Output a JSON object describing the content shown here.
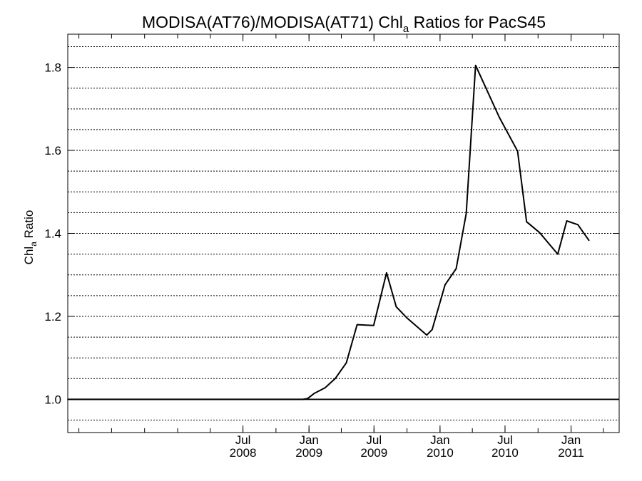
{
  "chart_data": {
    "type": "line",
    "title": {
      "prefix": "MODISA(AT76)/MODISA(AT71)  Chl",
      "subscript": "a",
      "suffix": " Ratios for PacS45"
    },
    "xlabel": "",
    "ylabel": {
      "prefix": "Chl",
      "subscript": "a",
      "suffix": " Ratio"
    },
    "xlim": [
      "2007-03-01",
      "2011-05-15"
    ],
    "ylim": [
      0.92,
      1.88
    ],
    "y_ticks": [
      {
        "value": 1.0,
        "label": "1.0"
      },
      {
        "value": 1.2,
        "label": "1.2"
      },
      {
        "value": 1.4,
        "label": "1.4"
      },
      {
        "value": 1.6,
        "label": "1.6"
      },
      {
        "value": 1.8,
        "label": "1.8"
      }
    ],
    "y_gridlines": [
      0.95,
      1.0,
      1.05,
      1.1,
      1.15,
      1.2,
      1.25,
      1.3,
      1.35,
      1.4,
      1.45,
      1.5,
      1.55,
      1.6,
      1.65,
      1.7,
      1.75,
      1.8,
      1.85
    ],
    "x_ticks": [
      {
        "date": "2008-07-01",
        "month": "Jul",
        "year": "2008"
      },
      {
        "date": "2009-01-01",
        "month": "Jan",
        "year": "2009"
      },
      {
        "date": "2009-07-01",
        "month": "Jul",
        "year": "2009"
      },
      {
        "date": "2010-01-01",
        "month": "Jan",
        "year": "2010"
      },
      {
        "date": "2010-07-01",
        "month": "Jul",
        "year": "2010"
      },
      {
        "date": "2011-01-01",
        "month": "Jan",
        "year": "2011"
      }
    ],
    "grid": true,
    "reference_line": 1.0,
    "series": [
      {
        "color": "#000000",
        "points": [
          {
            "x": "2007-03-01",
            "y": 1.0
          },
          {
            "x": "2008-12-15",
            "y": 1.0
          },
          {
            "x": "2008-12-28",
            "y": 1.002
          },
          {
            "x": "2009-01-15",
            "y": 1.014
          },
          {
            "x": "2009-02-15",
            "y": 1.028
          },
          {
            "x": "2009-03-15",
            "y": 1.05
          },
          {
            "x": "2009-04-15",
            "y": 1.088
          },
          {
            "x": "2009-05-15",
            "y": 1.18
          },
          {
            "x": "2009-06-30",
            "y": 1.178
          },
          {
            "x": "2009-08-05",
            "y": 1.305
          },
          {
            "x": "2009-09-01",
            "y": 1.223
          },
          {
            "x": "2009-10-01",
            "y": 1.196
          },
          {
            "x": "2009-11-25",
            "y": 1.155
          },
          {
            "x": "2009-12-10",
            "y": 1.168
          },
          {
            "x": "2010-01-15",
            "y": 1.276
          },
          {
            "x": "2010-02-15",
            "y": 1.315
          },
          {
            "x": "2010-03-15",
            "y": 1.448
          },
          {
            "x": "2010-04-10",
            "y": 1.805
          },
          {
            "x": "2010-06-15",
            "y": 1.68
          },
          {
            "x": "2010-08-05",
            "y": 1.598
          },
          {
            "x": "2010-08-30",
            "y": 1.428
          },
          {
            "x": "2010-10-05",
            "y": 1.402
          },
          {
            "x": "2010-11-25",
            "y": 1.35
          },
          {
            "x": "2010-12-20",
            "y": 1.43
          },
          {
            "x": "2011-01-20",
            "y": 1.421
          },
          {
            "x": "2011-02-20",
            "y": 1.383
          }
        ]
      }
    ]
  }
}
